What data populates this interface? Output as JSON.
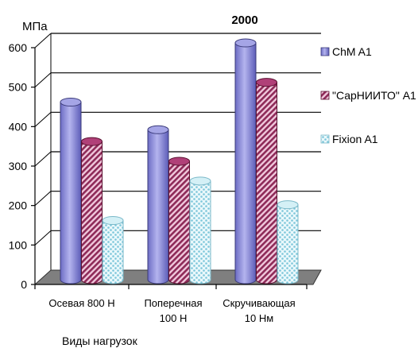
{
  "chart_data": {
    "type": "bar",
    "title": "",
    "annotation": "2000",
    "ylabel": "МПа",
    "xlabel": "Виды нагрузок",
    "ylim": [
      0,
      600
    ],
    "yticks": [
      0,
      100,
      200,
      300,
      400,
      500,
      600
    ],
    "categories": [
      [
        "Осевая 800 Н"
      ],
      [
        "Поперечная",
        "100 Н"
      ],
      [
        "Скручивающая",
        "10 Нм"
      ]
    ],
    "series": [
      {
        "name": "ChM A1",
        "values": [
          450,
          380,
          600
        ],
        "color": "#8f8fd6"
      },
      {
        "name": "\"СарНИИТО\" A1",
        "values": [
          350,
          300,
          500
        ],
        "color": "#9c2f5f"
      },
      {
        "name": "Fixion A1",
        "values": [
          150,
          250,
          190
        ],
        "color": "#bfe6ef"
      }
    ],
    "legend_position": "right",
    "grid": true
  }
}
